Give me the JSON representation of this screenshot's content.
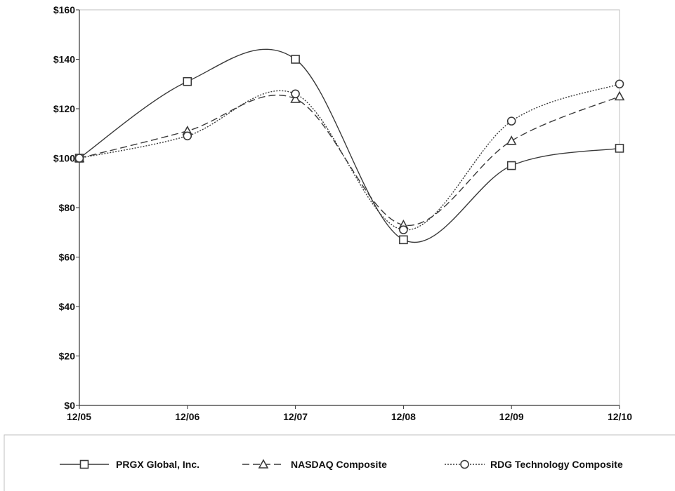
{
  "chart_data": {
    "type": "line",
    "categories": [
      "12/05",
      "12/06",
      "12/07",
      "12/08",
      "12/09",
      "12/10"
    ],
    "ylim": [
      0,
      160
    ],
    "yticks": [
      0,
      20,
      40,
      60,
      80,
      100,
      120,
      140,
      160
    ],
    "ytick_labels": [
      "$0",
      "$20",
      "$40",
      "$60",
      "$80",
      "$100",
      "$120",
      "$140",
      "$160"
    ],
    "grid": false,
    "legend_position": "bottom",
    "series": [
      {
        "name": "PRGX Global, Inc.",
        "values": [
          100,
          131,
          140,
          67,
          97,
          104
        ],
        "marker": "square",
        "line_style": "solid"
      },
      {
        "name": "NASDAQ Composite",
        "values": [
          100,
          111,
          124,
          73,
          107,
          125
        ],
        "marker": "triangle",
        "line_style": "dashed"
      },
      {
        "name": "RDG Technology Composite",
        "values": [
          100,
          109,
          126,
          71,
          115,
          130
        ],
        "marker": "circle",
        "line_style": "dotted"
      }
    ],
    "colors": {
      "line": "#3a3a3a",
      "axis": "#333333",
      "frame": "#bfbfbf"
    }
  }
}
